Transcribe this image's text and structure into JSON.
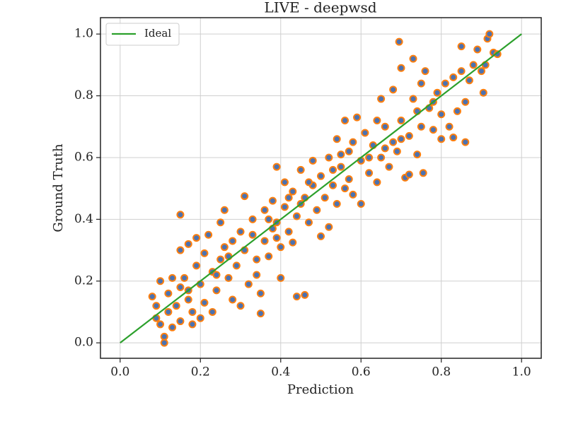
{
  "chart_data": {
    "type": "scatter",
    "title": "LIVE - deepwsd",
    "x_label": "Prediction",
    "y_label": "Ground Truth",
    "color": "#4c72b0",
    "edgecolor": "#ff7f0e",
    "x": [
      0.08,
      0.09,
      0.1,
      0.11,
      0.11,
      0.1,
      0.12,
      0.13,
      0.12,
      0.14,
      0.15,
      0.15,
      0.16,
      0.17,
      0.18,
      0.18,
      0.19,
      0.19,
      0.17,
      0.15,
      0.15,
      0.2,
      0.21,
      0.21,
      0.22,
      0.23,
      0.23,
      0.24,
      0.25,
      0.25,
      0.26,
      0.27,
      0.28,
      0.28,
      0.29,
      0.3,
      0.3,
      0.31,
      0.31,
      0.32,
      0.33,
      0.34,
      0.34,
      0.35,
      0.35,
      0.36,
      0.36,
      0.37,
      0.38,
      0.38,
      0.39,
      0.39,
      0.4,
      0.4,
      0.41,
      0.41,
      0.42,
      0.43,
      0.43,
      0.44,
      0.44,
      0.45,
      0.46,
      0.46,
      0.47,
      0.48,
      0.48,
      0.49,
      0.5,
      0.5,
      0.51,
      0.52,
      0.52,
      0.53,
      0.54,
      0.54,
      0.55,
      0.56,
      0.56,
      0.57,
      0.58,
      0.59,
      0.6,
      0.6,
      0.61,
      0.62,
      0.63,
      0.64,
      0.65,
      0.65,
      0.66,
      0.67,
      0.68,
      0.68,
      0.69,
      0.695,
      0.7,
      0.7,
      0.71,
      0.72,
      0.72,
      0.73,
      0.73,
      0.74,
      0.75,
      0.755,
      0.75,
      0.76,
      0.77,
      0.78,
      0.79,
      0.8,
      0.8,
      0.81,
      0.82,
      0.83,
      0.83,
      0.84,
      0.85,
      0.85,
      0.86,
      0.86,
      0.87,
      0.88,
      0.89,
      0.9,
      0.905,
      0.91,
      0.915,
      0.92,
      0.93,
      0.94,
      0.2,
      0.13,
      0.26,
      0.33,
      0.45,
      0.55,
      0.62,
      0.7,
      0.78,
      0.57,
      0.47,
      0.37,
      0.27,
      0.17,
      0.64,
      0.74,
      0.53,
      0.42,
      0.24,
      0.09,
      0.58,
      0.66,
      0.39
    ],
    "values": [
      0.15,
      0.08,
      0.06,
      0.02,
      0.0,
      0.2,
      0.1,
      0.05,
      0.16,
      0.12,
      0.07,
      0.18,
      0.21,
      0.14,
      0.1,
      0.06,
      0.25,
      0.34,
      0.32,
      0.3,
      0.415,
      0.19,
      0.13,
      0.29,
      0.35,
      0.23,
      0.1,
      0.17,
      0.27,
      0.39,
      0.43,
      0.21,
      0.33,
      0.14,
      0.25,
      0.36,
      0.12,
      0.475,
      0.3,
      0.19,
      0.4,
      0.27,
      0.22,
      0.095,
      0.16,
      0.33,
      0.43,
      0.28,
      0.46,
      0.37,
      0.57,
      0.39,
      0.21,
      0.31,
      0.52,
      0.44,
      0.36,
      0.325,
      0.49,
      0.15,
      0.41,
      0.56,
      0.155,
      0.47,
      0.39,
      0.59,
      0.51,
      0.43,
      0.345,
      0.54,
      0.47,
      0.6,
      0.375,
      0.51,
      0.66,
      0.45,
      0.57,
      0.72,
      0.5,
      0.62,
      0.48,
      0.73,
      0.45,
      0.59,
      0.68,
      0.55,
      0.64,
      0.52,
      0.79,
      0.6,
      0.7,
      0.57,
      0.82,
      0.65,
      0.62,
      0.975,
      0.89,
      0.72,
      0.535,
      0.545,
      0.67,
      0.92,
      0.79,
      0.61,
      0.84,
      0.55,
      0.7,
      0.88,
      0.76,
      0.69,
      0.81,
      0.66,
      0.74,
      0.84,
      0.7,
      0.665,
      0.86,
      0.75,
      0.88,
      0.96,
      0.78,
      0.65,
      0.85,
      0.9,
      0.95,
      0.88,
      0.81,
      0.9,
      0.985,
      1.0,
      0.94,
      0.935,
      0.08,
      0.21,
      0.31,
      0.35,
      0.45,
      0.61,
      0.6,
      0.66,
      0.78,
      0.53,
      0.52,
      0.4,
      0.28,
      0.17,
      0.72,
      0.75,
      0.56,
      0.47,
      0.22,
      0.12,
      0.65,
      0.63,
      0.34
    ],
    "series": [
      {
        "name": "Ideal",
        "type": "line",
        "color": "#2ca02c",
        "x": [
          0,
          1
        ],
        "values": [
          0,
          1
        ]
      }
    ],
    "xlim": [
      -0.049,
      1.049
    ],
    "ylim": [
      -0.05,
      1.053
    ],
    "xticks": [
      {
        "value": 0,
        "label": "0.0"
      },
      {
        "value": 0.2,
        "label": "0.2"
      },
      {
        "value": 0.4,
        "label": "0.4"
      },
      {
        "value": 0.6,
        "label": "0.6"
      },
      {
        "value": 0.8,
        "label": "0.8"
      },
      {
        "value": 1,
        "label": "1.0"
      }
    ],
    "yticks": [
      {
        "value": 0,
        "label": "0.0"
      },
      {
        "value": 0.2,
        "label": "0.2"
      },
      {
        "value": 0.4,
        "label": "0.4"
      },
      {
        "value": 0.6,
        "label": "0.6"
      },
      {
        "value": 0.8,
        "label": "0.8"
      },
      {
        "value": 1,
        "label": "1.0"
      }
    ],
    "grid": true,
    "legend": "upper left"
  }
}
